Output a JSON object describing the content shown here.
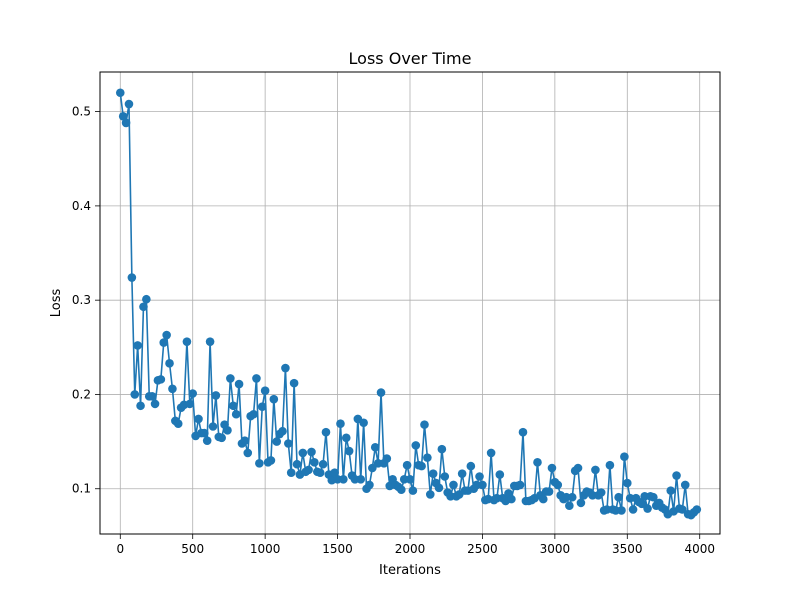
{
  "chart_data": {
    "type": "line",
    "title": "Loss Over Time",
    "xlabel": "Iterations",
    "ylabel": "Loss",
    "xlim": [
      -140,
      4140
    ],
    "ylim": [
      0.052,
      0.542
    ],
    "xticks": [
      0,
      500,
      1000,
      1500,
      2000,
      2500,
      3000,
      3500,
      4000
    ],
    "xtick_labels": [
      "0",
      "500",
      "1000",
      "1500",
      "2000",
      "2500",
      "3000",
      "3500",
      "4000"
    ],
    "yticks": [
      0.1,
      0.2,
      0.3,
      0.4,
      0.5
    ],
    "ytick_labels": [
      "0.1",
      "0.2",
      "0.3",
      "0.4",
      "0.5"
    ],
    "grid": true,
    "marker": "circle",
    "color": "#1f77b4",
    "series": [
      {
        "x": [
          0,
          20,
          40,
          60,
          80,
          100,
          120,
          140,
          160,
          180,
          200,
          220,
          240,
          260,
          280,
          300,
          320,
          340,
          360,
          380,
          400,
          420,
          440,
          460,
          480,
          500,
          520,
          540,
          560,
          580,
          600,
          620,
          640,
          660,
          680,
          700,
          720,
          740,
          760,
          780,
          800,
          820,
          840,
          860,
          880,
          900,
          920,
          940,
          960,
          980,
          1000,
          1020,
          1040,
          1060,
          1080,
          1100,
          1120,
          1140,
          1160,
          1180,
          1200,
          1220,
          1240,
          1260,
          1280,
          1300,
          1320,
          1340,
          1360,
          1380,
          1400,
          1420,
          1440,
          1460,
          1480,
          1500,
          1520,
          1540,
          1560,
          1580,
          1600,
          1620,
          1640,
          1660,
          1680,
          1700,
          1720,
          1740,
          1760,
          1780,
          1800,
          1820,
          1840,
          1860,
          1880,
          1900,
          1920,
          1940,
          1960,
          1980,
          2000,
          2020,
          2040,
          2060,
          2080,
          2100,
          2120,
          2140,
          2160,
          2180,
          2200,
          2220,
          2240,
          2260,
          2280,
          2300,
          2320,
          2340,
          2360,
          2380,
          2400,
          2420,
          2440,
          2460,
          2480,
          2500,
          2520,
          2540,
          2560,
          2580,
          2600,
          2620,
          2640,
          2660,
          2680,
          2700,
          2720,
          2740,
          2760,
          2780,
          2800,
          2820,
          2840,
          2860,
          2880,
          2900,
          2920,
          2940,
          2960,
          2980,
          3000,
          3020,
          3040,
          3060,
          3080,
          3100,
          3120,
          3140,
          3160,
          3180,
          3200,
          3220,
          3240,
          3260,
          3280,
          3300,
          3320,
          3340,
          3360,
          3380,
          3400,
          3420,
          3440,
          3460,
          3480,
          3500,
          3520,
          3540,
          3560,
          3580,
          3600,
          3620,
          3640,
          3660,
          3680,
          3700,
          3720,
          3740,
          3760,
          3780,
          3800,
          3820,
          3840,
          3860,
          3880,
          3900,
          3920,
          3940,
          3960,
          3980
        ],
        "y": [
          0.52,
          0.495,
          0.488,
          0.508,
          0.324,
          0.2,
          0.252,
          0.188,
          0.293,
          0.301,
          0.198,
          0.198,
          0.19,
          0.215,
          0.216,
          0.255,
          0.263,
          0.233,
          0.206,
          0.172,
          0.169,
          0.186,
          0.189,
          0.256,
          0.19,
          0.201,
          0.156,
          0.174,
          0.159,
          0.159,
          0.151,
          0.256,
          0.166,
          0.199,
          0.155,
          0.154,
          0.168,
          0.162,
          0.217,
          0.188,
          0.179,
          0.211,
          0.148,
          0.151,
          0.138,
          0.177,
          0.179,
          0.217,
          0.127,
          0.187,
          0.204,
          0.128,
          0.13,
          0.195,
          0.15,
          0.158,
          0.161,
          0.228,
          0.148,
          0.117,
          0.212,
          0.126,
          0.115,
          0.138,
          0.118,
          0.12,
          0.139,
          0.128,
          0.118,
          0.117,
          0.126,
          0.16,
          0.115,
          0.109,
          0.117,
          0.11,
          0.169,
          0.11,
          0.154,
          0.14,
          0.114,
          0.11,
          0.174,
          0.11,
          0.17,
          0.1,
          0.104,
          0.122,
          0.144,
          0.127,
          0.202,
          0.127,
          0.132,
          0.103,
          0.11,
          0.104,
          0.102,
          0.099,
          0.11,
          0.125,
          0.11,
          0.098,
          0.146,
          0.125,
          0.124,
          0.168,
          0.133,
          0.094,
          0.116,
          0.106,
          0.101,
          0.142,
          0.113,
          0.096,
          0.092,
          0.104,
          0.092,
          0.094,
          0.116,
          0.098,
          0.098,
          0.124,
          0.1,
          0.104,
          0.113,
          0.104,
          0.088,
          0.089,
          0.138,
          0.088,
          0.09,
          0.115,
          0.09,
          0.087,
          0.095,
          0.089,
          0.103,
          0.103,
          0.104,
          0.16,
          0.087,
          0.087,
          0.088,
          0.09,
          0.128,
          0.093,
          0.089,
          0.097,
          0.097,
          0.122,
          0.107,
          0.104,
          0.093,
          0.089,
          0.091,
          0.082,
          0.091,
          0.119,
          0.122,
          0.085,
          0.093,
          0.097,
          0.096,
          0.093,
          0.12,
          0.093,
          0.096,
          0.077,
          0.078,
          0.125,
          0.078,
          0.077,
          0.091,
          0.077,
          0.134,
          0.106,
          0.09,
          0.078,
          0.09,
          0.086,
          0.084,
          0.092,
          0.079,
          0.092,
          0.091,
          0.082,
          0.085,
          0.08,
          0.078,
          0.073,
          0.098,
          0.076,
          0.114,
          0.079,
          0.078,
          0.104,
          0.073,
          0.072,
          0.075,
          0.078
        ]
      }
    ]
  }
}
